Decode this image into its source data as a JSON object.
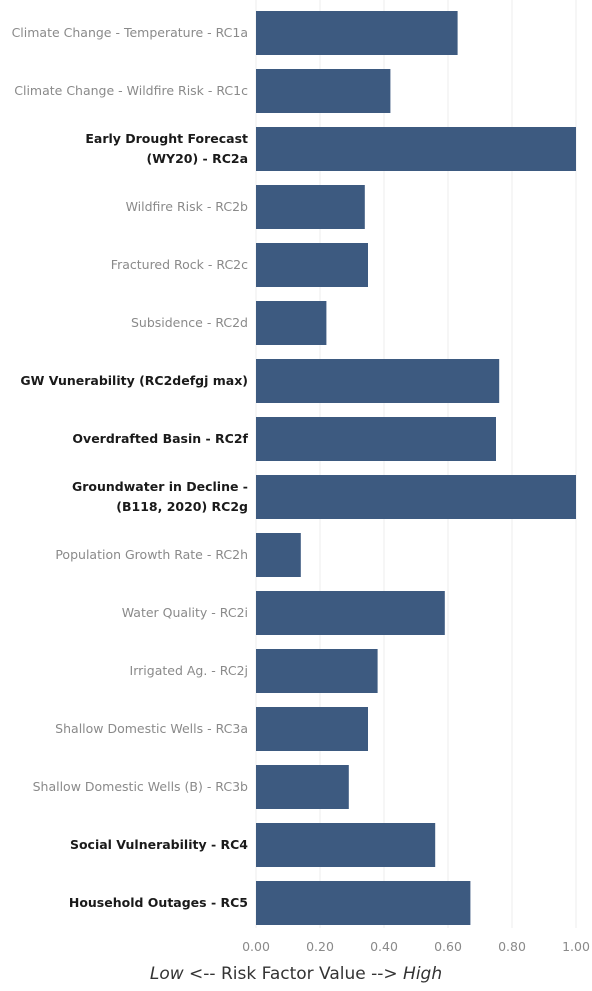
{
  "chart_data": {
    "type": "bar",
    "orientation": "horizontal",
    "bar_color": "#3d5a80",
    "grid": true,
    "xlim": [
      0,
      1
    ],
    "xticks": [
      "0.00",
      "0.20",
      "0.40",
      "0.60",
      "0.80",
      "1.00"
    ],
    "xlabel": {
      "low": "Low",
      "middle": " <-- Risk Factor Value --> ",
      "high": "High"
    },
    "categories": [
      {
        "label": [
          "Climate Change - Temperature - RC1a"
        ],
        "value": 0.63,
        "bold": false
      },
      {
        "label": [
          "Climate Change - Wildfire Risk - RC1c"
        ],
        "value": 0.42,
        "bold": false
      },
      {
        "label": [
          "Early Drought Forecast",
          "(WY20) - RC2a"
        ],
        "value": 1.0,
        "bold": true
      },
      {
        "label": [
          "Wildfire Risk - RC2b"
        ],
        "value": 0.34,
        "bold": false
      },
      {
        "label": [
          "Fractured Rock - RC2c"
        ],
        "value": 0.35,
        "bold": false
      },
      {
        "label": [
          "Subsidence - RC2d"
        ],
        "value": 0.22,
        "bold": false
      },
      {
        "label": [
          "GW Vunerability (RC2defgj max)"
        ],
        "value": 0.76,
        "bold": true
      },
      {
        "label": [
          "Overdrafted Basin - RC2f"
        ],
        "value": 0.75,
        "bold": true
      },
      {
        "label": [
          "Groundwater in Decline -",
          "(B118, 2020) RC2g"
        ],
        "value": 1.0,
        "bold": true
      },
      {
        "label": [
          "Population Growth Rate - RC2h"
        ],
        "value": 0.14,
        "bold": false
      },
      {
        "label": [
          "Water Quality - RC2i"
        ],
        "value": 0.59,
        "bold": false
      },
      {
        "label": [
          "Irrigated Ag. - RC2j"
        ],
        "value": 0.38,
        "bold": false
      },
      {
        "label": [
          "Shallow Domestic Wells - RC3a"
        ],
        "value": 0.35,
        "bold": false
      },
      {
        "label": [
          "Shallow Domestic Wells (B) - RC3b"
        ],
        "value": 0.29,
        "bold": false
      },
      {
        "label": [
          "Social Vulnerability - RC4"
        ],
        "value": 0.56,
        "bold": true
      },
      {
        "label": [
          "Household Outages - RC5"
        ],
        "value": 0.67,
        "bold": true
      }
    ]
  }
}
